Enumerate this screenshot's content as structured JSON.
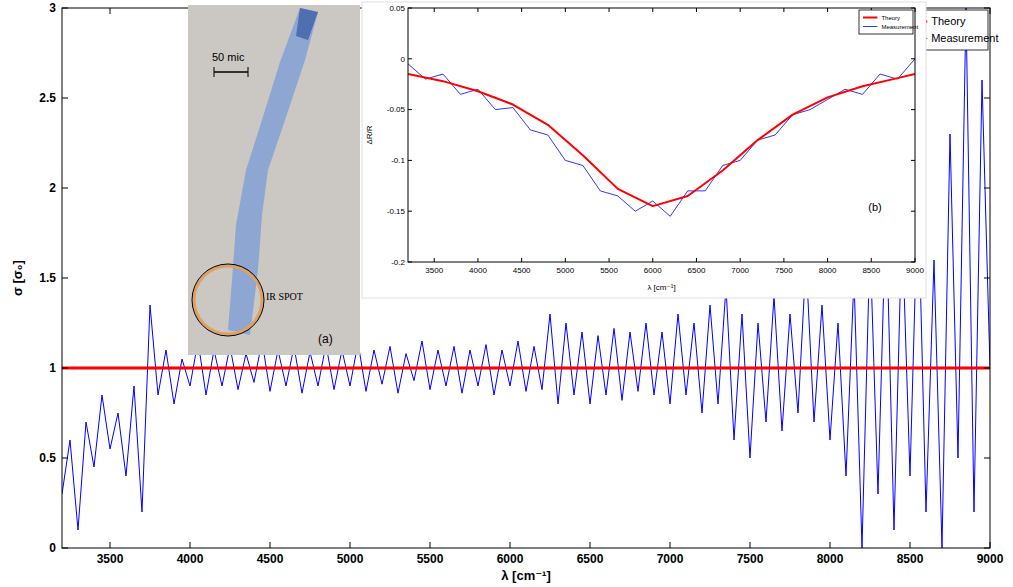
{
  "chart_data": [
    {
      "type": "line",
      "x_label": "λ [cm⁻¹]",
      "y_label": "σ [σ₀]",
      "xlim": [
        3200,
        9000
      ],
      "ylim": [
        0,
        3
      ],
      "xticks": [
        3500,
        4000,
        4500,
        5000,
        5500,
        6000,
        6500,
        7000,
        7500,
        8000,
        8500,
        9000
      ],
      "yticks": [
        0,
        0.5,
        1,
        1.5,
        2,
        2.5,
        3
      ],
      "grid": false,
      "legend": "upper right",
      "series": [
        {
          "name": "Theory",
          "color": "#ff0000",
          "line_style": "solid",
          "x": [
            3200,
            9000
          ],
          "values": [
            1,
            1
          ]
        },
        {
          "name": "Measurement",
          "color": "#0000ff",
          "line_style": "solid",
          "x": [
            3200,
            3250,
            3300,
            3350,
            3400,
            3450,
            3500,
            3550,
            3600,
            3650,
            3700,
            3750,
            3800,
            3850,
            3900,
            3950,
            4000,
            4050,
            4100,
            4150,
            4200,
            4250,
            4300,
            4350,
            4400,
            4450,
            4500,
            4550,
            4600,
            4650,
            4700,
            4750,
            4800,
            4850,
            4900,
            4950,
            5000,
            5050,
            5100,
            5150,
            5200,
            5250,
            5300,
            5350,
            5400,
            5450,
            5500,
            5550,
            5600,
            5650,
            5700,
            5750,
            5800,
            5850,
            5900,
            5950,
            6000,
            6050,
            6100,
            6150,
            6200,
            6250,
            6300,
            6350,
            6400,
            6450,
            6500,
            6550,
            6600,
            6650,
            6700,
            6750,
            6800,
            6850,
            6900,
            6950,
            7000,
            7050,
            7100,
            7150,
            7200,
            7250,
            7300,
            7350,
            7400,
            7450,
            7500,
            7550,
            7600,
            7650,
            7700,
            7750,
            7800,
            7850,
            7900,
            7950,
            8000,
            8050,
            8100,
            8150,
            8200,
            8250,
            8300,
            8350,
            8400,
            8450,
            8500,
            8550,
            8600,
            8650,
            8700,
            8750,
            8800,
            8850,
            8900,
            8950,
            9000
          ],
          "values": [
            0.3,
            0.6,
            0.1,
            0.7,
            0.45,
            0.85,
            0.55,
            0.75,
            0.4,
            0.9,
            0.2,
            1.35,
            0.85,
            1.1,
            0.8,
            1.05,
            0.9,
            1.15,
            0.85,
            1.1,
            0.9,
            1.12,
            0.88,
            1.08,
            0.92,
            1.15,
            0.87,
            1.1,
            0.9,
            1.12,
            0.86,
            1.09,
            0.9,
            1.13,
            0.88,
            1.1,
            0.9,
            1.14,
            0.87,
            1.1,
            0.91,
            1.12,
            0.86,
            1.08,
            0.93,
            1.15,
            0.88,
            1.1,
            0.9,
            1.12,
            0.86,
            1.1,
            0.9,
            1.13,
            0.85,
            1.1,
            0.9,
            1.15,
            0.87,
            1.12,
            0.88,
            1.3,
            0.8,
            1.25,
            0.85,
            1.2,
            0.8,
            1.18,
            0.85,
            1.22,
            0.82,
            1.2,
            0.87,
            1.25,
            0.85,
            1.2,
            0.8,
            1.3,
            0.85,
            1.25,
            0.75,
            1.35,
            0.8,
            1.45,
            0.6,
            1.3,
            0.5,
            1.25,
            0.7,
            1.4,
            0.65,
            1.3,
            0.75,
            1.6,
            0.7,
            1.35,
            0.6,
            1.25,
            0.4,
            1.5,
            0.0,
            1.7,
            0.3,
            1.9,
            0.1,
            1.8,
            0.4,
            2.0,
            0.2,
            1.6,
            0.0,
            2.3,
            0.5,
            3.0,
            0.2,
            2.6,
            1.0
          ]
        }
      ]
    },
    {
      "type": "line",
      "annotation": "(b)",
      "x_label": "λ [cm⁻¹]",
      "y_label": "ΔR/R",
      "xlim": [
        3200,
        9000
      ],
      "ylim": [
        -0.2,
        0.05
      ],
      "xticks": [
        3500,
        4000,
        4500,
        5000,
        5500,
        6000,
        6500,
        7000,
        7500,
        8000,
        8500,
        9000
      ],
      "yticks": [
        -0.2,
        -0.15,
        -0.1,
        -0.05,
        0,
        0.05
      ],
      "grid": false,
      "legend": "upper right",
      "series": [
        {
          "name": "Theory",
          "color": "#ff0000",
          "line_style": "solid",
          "x": [
            3200,
            3600,
            4000,
            4400,
            4800,
            5200,
            5600,
            6000,
            6400,
            6800,
            7200,
            7600,
            8000,
            8400,
            8800,
            9000
          ],
          "values": [
            -0.015,
            -0.022,
            -0.032,
            -0.045,
            -0.065,
            -0.095,
            -0.128,
            -0.145,
            -0.135,
            -0.11,
            -0.08,
            -0.055,
            -0.038,
            -0.027,
            -0.019,
            -0.015
          ]
        },
        {
          "name": "Measurement",
          "color": "#0000ff",
          "line_style": "solid",
          "x": [
            3200,
            3400,
            3600,
            3800,
            4000,
            4200,
            4400,
            4600,
            4800,
            5000,
            5200,
            5400,
            5600,
            5800,
            6000,
            6200,
            6400,
            6600,
            6800,
            7000,
            7200,
            7400,
            7600,
            7800,
            8000,
            8200,
            8400,
            8600,
            8800,
            9000
          ],
          "values": [
            -0.005,
            -0.02,
            -0.015,
            -0.035,
            -0.03,
            -0.05,
            -0.048,
            -0.07,
            -0.075,
            -0.1,
            -0.105,
            -0.13,
            -0.135,
            -0.15,
            -0.14,
            -0.155,
            -0.13,
            -0.13,
            -0.105,
            -0.1,
            -0.08,
            -0.075,
            -0.055,
            -0.05,
            -0.04,
            -0.03,
            -0.035,
            -0.015,
            -0.02,
            0.0
          ]
        }
      ]
    }
  ],
  "photo": {
    "panel": "(a)",
    "scale_label": "50 mic",
    "spot_label": "IR SPOT"
  }
}
